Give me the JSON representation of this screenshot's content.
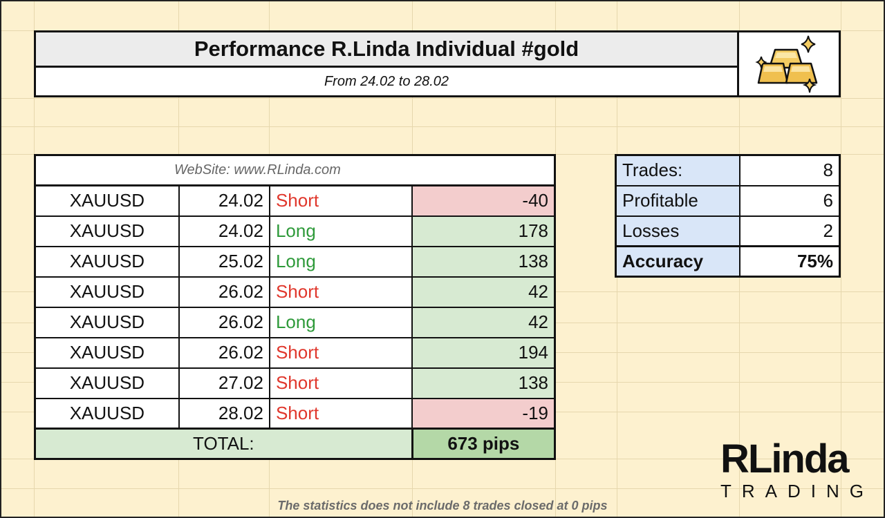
{
  "header": {
    "title": "Performance R.Linda Individual #gold",
    "subtitle": "From 24.02 to 28.02",
    "logo_icon": "gold-bars-icon"
  },
  "website": "WebSite:   www.RLinda.com",
  "trades": [
    {
      "symbol": "XAUUSD",
      "date": "24.02",
      "direction": "Short",
      "pips": "-40"
    },
    {
      "symbol": "XAUUSD",
      "date": "24.02",
      "direction": "Long",
      "pips": "178"
    },
    {
      "symbol": "XAUUSD",
      "date": "25.02",
      "direction": "Long",
      "pips": "138"
    },
    {
      "symbol": "XAUUSD",
      "date": "26.02",
      "direction": "Short",
      "pips": "42"
    },
    {
      "symbol": "XAUUSD",
      "date": "26.02",
      "direction": "Long",
      "pips": "42"
    },
    {
      "symbol": "XAUUSD",
      "date": "26.02",
      "direction": "Short",
      "pips": "194"
    },
    {
      "symbol": "XAUUSD",
      "date": "27.02",
      "direction": "Short",
      "pips": "138"
    },
    {
      "symbol": "XAUUSD",
      "date": "28.02",
      "direction": "Short",
      "pips": "-19"
    }
  ],
  "total": {
    "label": "TOTAL:",
    "value": "673 pips"
  },
  "stats": {
    "trades_label": "Trades:",
    "trades_value": "8",
    "profitable_label": "Profitable",
    "profitable_value": "6",
    "losses_label": "Losses",
    "losses_value": "2",
    "accuracy_label": "Accuracy",
    "accuracy_value": "75%"
  },
  "footnote": "The statistics does not include 8 trades closed at 0 pips",
  "brand": {
    "top": "RLinda",
    "bottom": "TRADING"
  },
  "colors": {
    "background": "#fdf1cf",
    "short": "#e0372c",
    "long": "#2e9a3a",
    "loss_cell": "#f3cdcd",
    "profit_cell": "#d7ead2",
    "stats_label": "#d9e6f8"
  }
}
